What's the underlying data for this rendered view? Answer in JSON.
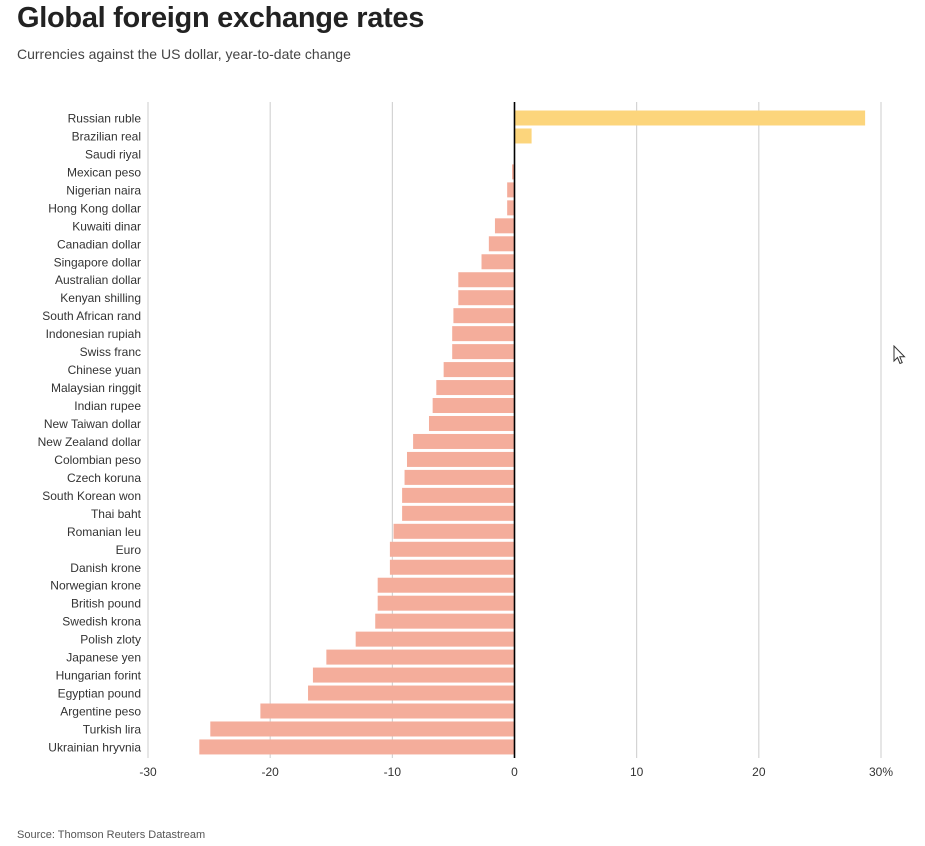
{
  "title": "Global foreign exchange rates",
  "subtitle": "Currencies against the US dollar, year-to-date change",
  "source": "Source: Thomson Reuters Datastream",
  "colors": {
    "positive": "#fcd57c",
    "negative": "#f4ad9b",
    "grid": "#cccccc",
    "axis": "#000000"
  },
  "chart_data": {
    "type": "bar",
    "orientation": "horizontal",
    "title": "Global foreign exchange rates",
    "subtitle": "Currencies against the US dollar, year-to-date change",
    "categories": [
      "Russian ruble",
      "Brazilian real",
      "Saudi riyal",
      "Mexican peso",
      "Nigerian naira",
      "Hong Kong dollar",
      "Kuwaiti dinar",
      "Canadian dollar",
      "Singapore dollar",
      "Australian dollar",
      "Kenyan shilling",
      "South African rand",
      "Indonesian rupiah",
      "Swiss franc",
      "Chinese yuan",
      "Malaysian ringgit",
      "Indian rupee",
      "New Taiwan dollar",
      "New Zealand dollar",
      "Colombian peso",
      "Czech koruna",
      "South Korean won",
      "Thai baht",
      "Romanian leu",
      "Euro",
      "Danish krone",
      "Norwegian krone",
      "British pound",
      "Swedish krona",
      "Polish zloty",
      "Japanese yen",
      "Hungarian forint",
      "Egyptian pound",
      "Argentine peso",
      "Turkish lira",
      "Ukrainian hryvnia"
    ],
    "values": [
      28.7,
      1.4,
      0.0,
      -0.2,
      -0.6,
      -0.6,
      -1.6,
      -2.1,
      -2.7,
      -4.6,
      -4.6,
      -5.0,
      -5.1,
      -5.1,
      -5.8,
      -6.4,
      -6.7,
      -7.0,
      -8.3,
      -8.8,
      -9.0,
      -9.2,
      -9.2,
      -9.9,
      -10.2,
      -10.2,
      -11.2,
      -11.2,
      -11.4,
      -13.0,
      -15.4,
      -16.5,
      -16.9,
      -20.8,
      -24.9,
      -25.8
    ],
    "xlim": [
      -30,
      30
    ],
    "xticks": [
      -30,
      -20,
      -10,
      0,
      10,
      20,
      30
    ],
    "xtick_labels": [
      "-30",
      "-20",
      "-10",
      "0",
      "10",
      "20",
      "30%"
    ],
    "grid": true,
    "legend": "none"
  }
}
